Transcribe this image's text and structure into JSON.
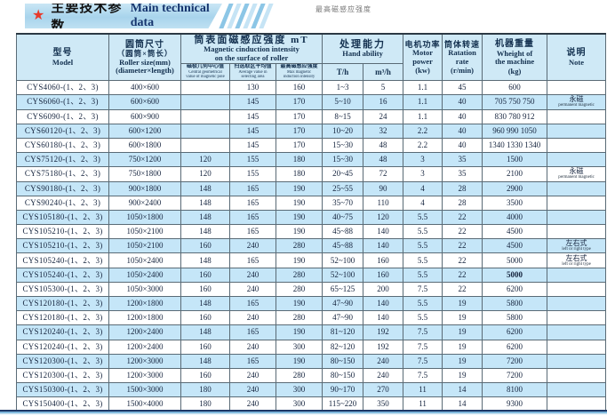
{
  "banner": {
    "star": "★",
    "title_cn": "主要技术参数",
    "title_en": "Main technical data"
  },
  "watermark": "最高磁感应强度",
  "colors": {
    "banner_blue": "#a8d4ec",
    "stripe_row_blue": "#c5e6f8",
    "header_blue": "#cfe9f6",
    "title_en_navy": "#16356e",
    "star_red": "#e8392b",
    "bottom_navy": "#1c3766"
  },
  "table": {
    "headers": {
      "model_cn": "型号",
      "model_en": "Model",
      "size_cn": "圆筒尺寸",
      "size_cn2": "（圆筒×筒长）",
      "size_en": "Roller size(mm)",
      "size_en2": "(diameter×length)",
      "mag_group_cn": "筒表面磁感应强度 mT",
      "mag_group_en1": "Magnetic cinduction intensity",
      "mag_group_en2": "on the surface of roller",
      "mag_sub1_cn": "磁极几何中心值",
      "mag_sub1_en1": "Central geometrical",
      "mag_sub1_en2": "value of magnetic pole",
      "mag_sub2_cn": "扫选取区平均值",
      "mag_sub2_en1": "Average value in",
      "mag_sub2_en2": "selecting area",
      "mag_sub3_cn": "最高磁感应强度",
      "mag_sub3_en1": "Max magnetic",
      "mag_sub3_en2": "induction intensity",
      "hand_cn": "处理能力",
      "hand_en": "Hand ability",
      "th_label": "T/h",
      "m3h_label": "m³/h",
      "motor_cn": "电机功率",
      "motor_en1": "Motor",
      "motor_en2": "power",
      "motor_unit": "(kw)",
      "rate_cn": "筒体转速",
      "rate_en1": "Ratation",
      "rate_en2": "rate",
      "rate_unit": "(r/min)",
      "weight_cn": "机器重量",
      "weight_en1": "Wheight of",
      "weight_en2": "the machine",
      "weight_unit": "(kg)",
      "note_cn": "说明",
      "note_en": "Note"
    },
    "rows": [
      {
        "model": "CYS4060-(1、2、3)",
        "size": "400×600",
        "c1": "",
        "c2": "130",
        "c3": "160",
        "th": "1~3",
        "m3h": "5",
        "motor": "1.1",
        "rate": "45",
        "weight": "600",
        "note_cn": "",
        "note_en": ""
      },
      {
        "model": "CYS6060-(1、2、3)",
        "size": "600×600",
        "c1": "",
        "c2": "145",
        "c3": "170",
        "th": "5~10",
        "m3h": "16",
        "motor": "1.1",
        "rate": "40",
        "weight": "705 750 750",
        "note_cn": "永磁",
        "note_en": "permanent magnetic"
      },
      {
        "model": "CYS6090-(1、2、3)",
        "size": "600×900",
        "c1": "",
        "c2": "145",
        "c3": "170",
        "th": "8~15",
        "m3h": "24",
        "motor": "1.1",
        "rate": "40",
        "weight": "830 780 912",
        "note_cn": "",
        "note_en": ""
      },
      {
        "model": "CYS60120-(1、2、3)",
        "size": "600×1200",
        "c1": "",
        "c2": "145",
        "c3": "170",
        "th": "10~20",
        "m3h": "32",
        "motor": "2.2",
        "rate": "40",
        "weight": "960 990 1050",
        "note_cn": "",
        "note_en": ""
      },
      {
        "model": "CYS60180-(1、2、3)",
        "size": "600×1800",
        "c1": "",
        "c2": "145",
        "c3": "170",
        "th": "15~30",
        "m3h": "48",
        "motor": "2.2",
        "rate": "40",
        "weight": "1340 1330 1340",
        "note_cn": "",
        "note_en": ""
      },
      {
        "model": "CYS75120-(1、2、3)",
        "size": "750×1200",
        "c1": "120",
        "c2": "155",
        "c3": "180",
        "th": "15~30",
        "m3h": "48",
        "motor": "3",
        "rate": "35",
        "weight": "1500",
        "note_cn": "",
        "note_en": ""
      },
      {
        "model": "CYS75180-(1、2、3)",
        "size": "750×1800",
        "c1": "120",
        "c2": "155",
        "c3": "180",
        "th": "20~45",
        "m3h": "72",
        "motor": "3",
        "rate": "35",
        "weight": "2100",
        "note_cn": "永磁",
        "note_en": "permanent magnetic"
      },
      {
        "model": "CYS90180-(1、2、3)",
        "size": "900×1800",
        "c1": "148",
        "c2": "165",
        "c3": "190",
        "th": "25~55",
        "m3h": "90",
        "motor": "4",
        "rate": "28",
        "weight": "2900",
        "note_cn": "",
        "note_en": ""
      },
      {
        "model": "CYS90240-(1、2、3)",
        "size": "900×2400",
        "c1": "148",
        "c2": "165",
        "c3": "190",
        "th": "35~70",
        "m3h": "110",
        "motor": "4",
        "rate": "28",
        "weight": "3500",
        "note_cn": "",
        "note_en": ""
      },
      {
        "model": "CYS105180-(1、2、3)",
        "size": "1050×1800",
        "c1": "148",
        "c2": "165",
        "c3": "190",
        "th": "40~75",
        "m3h": "120",
        "motor": "5.5",
        "rate": "22",
        "weight": "4000",
        "note_cn": "",
        "note_en": ""
      },
      {
        "model": "CYS105210-(1、2、3)",
        "size": "1050×2100",
        "c1": "148",
        "c2": "165",
        "c3": "190",
        "th": "45~88",
        "m3h": "140",
        "motor": "5.5",
        "rate": "22",
        "weight": "4500",
        "note_cn": "",
        "note_en": ""
      },
      {
        "model": "CYS105210-(1、2、3)",
        "size": "1050×2100",
        "c1": "160",
        "c2": "240",
        "c3": "280",
        "th": "45~88",
        "m3h": "140",
        "motor": "5.5",
        "rate": "22",
        "weight": "4500",
        "note_cn": "左右式",
        "note_en": "left or right type"
      },
      {
        "model": "CYS105240-(1、2、3)",
        "size": "1050×2400",
        "c1": "148",
        "c2": "165",
        "c3": "190",
        "th": "52~100",
        "m3h": "160",
        "motor": "5.5",
        "rate": "22",
        "weight": "5000",
        "note_cn": "左右式",
        "note_en": "left or right type"
      },
      {
        "model": "CYS105240-(1、2、3)",
        "size": "1050×2400",
        "c1": "160",
        "c2": "240",
        "c3": "280",
        "th": "52~100",
        "m3h": "160",
        "motor": "5.5",
        "rate": "22",
        "weight": "5000",
        "weight_bold": true,
        "note_cn": "",
        "note_en": ""
      },
      {
        "model": "CYS105300-(1、2、3)",
        "size": "1050×3000",
        "c1": "160",
        "c2": "240",
        "c3": "280",
        "th": "65~125",
        "m3h": "200",
        "motor": "7.5",
        "rate": "22",
        "weight": "6200",
        "note_cn": "",
        "note_en": ""
      },
      {
        "model": "CYS120180-(1、2、3)",
        "size": "1200×1800",
        "c1": "148",
        "c2": "165",
        "c3": "190",
        "th": "47~90",
        "m3h": "140",
        "motor": "5.5",
        "rate": "19",
        "weight": "5800",
        "note_cn": "",
        "note_en": ""
      },
      {
        "model": "CYS120180-(1、2、3)",
        "size": "1200×1800",
        "c1": "160",
        "c2": "240",
        "c3": "280",
        "th": "47~90",
        "m3h": "140",
        "motor": "5.5",
        "rate": "19",
        "weight": "5800",
        "note_cn": "",
        "note_en": ""
      },
      {
        "model": "CYS120240-(1、2、3)",
        "size": "1200×2400",
        "c1": "148",
        "c2": "165",
        "c3": "190",
        "th": "81~120",
        "m3h": "192",
        "motor": "7.5",
        "rate": "19",
        "weight": "6200",
        "note_cn": "",
        "note_en": ""
      },
      {
        "model": "CYS120240-(1、2、3)",
        "size": "1200×2400",
        "c1": "160",
        "c2": "240",
        "c3": "300",
        "th": "82~120",
        "m3h": "192",
        "motor": "7.5",
        "rate": "19",
        "weight": "6200",
        "note_cn": "",
        "note_en": ""
      },
      {
        "model": "CYS120300-(1、2、3)",
        "size": "1200×3000",
        "c1": "148",
        "c2": "165",
        "c3": "190",
        "th": "80~150",
        "m3h": "240",
        "motor": "7.5",
        "rate": "19",
        "weight": "7200",
        "note_cn": "",
        "note_en": ""
      },
      {
        "model": "CYS120300-(1、2、3)",
        "size": "1200×3000",
        "c1": "160",
        "c2": "240",
        "c3": "280",
        "th": "80~150",
        "m3h": "240",
        "motor": "7.5",
        "rate": "19",
        "weight": "7200",
        "note_cn": "",
        "note_en": ""
      },
      {
        "model": "CYS150300-(1、2、3)",
        "size": "1500×3000",
        "c1": "180",
        "c2": "240",
        "c3": "300",
        "th": "90~170",
        "m3h": "270",
        "motor": "11",
        "rate": "14",
        "weight": "8100",
        "note_cn": "",
        "note_en": ""
      },
      {
        "model": "CYS150400-(1、2、3)",
        "size": "1500×4000",
        "c1": "180",
        "c2": "240",
        "c3": "300",
        "th": "115~220",
        "m3h": "350",
        "motor": "11",
        "rate": "14",
        "weight": "9300",
        "note_cn": "",
        "note_en": ""
      }
    ]
  }
}
